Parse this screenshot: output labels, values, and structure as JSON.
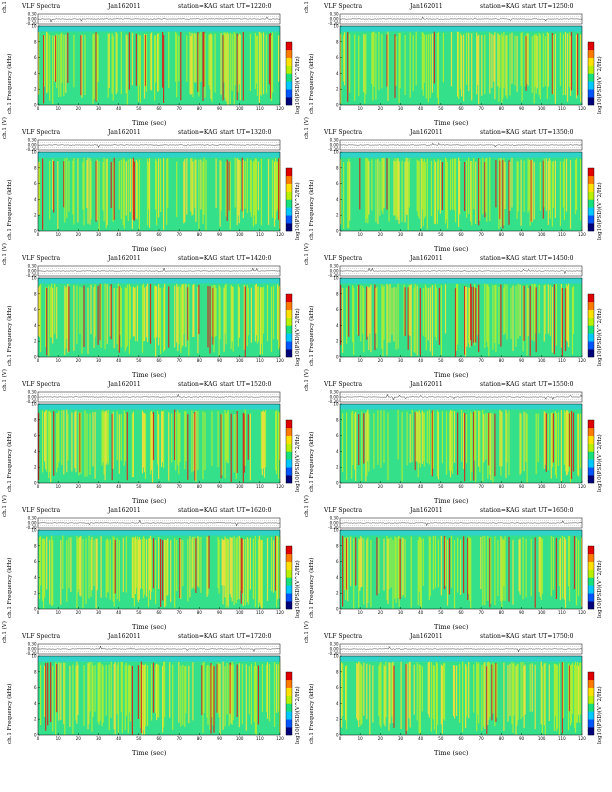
{
  "page": {
    "title": "VLF Spectra",
    "date": "Jan162011",
    "station": "station=KAG",
    "start_prefix": "start  UT"
  },
  "panels": [
    {
      "start": "=1220:0"
    },
    {
      "start": "=1250:0"
    },
    {
      "start": "=1320:0"
    },
    {
      "start": "=1350:0"
    },
    {
      "start": "=1420:0"
    },
    {
      "start": "=1450:0"
    },
    {
      "start": "=1520:0"
    },
    {
      "start": "=1550:0"
    },
    {
      "start": "=1620:0"
    },
    {
      "start": "=1650:0"
    },
    {
      "start": "=1720:0"
    },
    {
      "start": "=1750:0"
    }
  ],
  "axes": {
    "ch_label": "ch.1 (V)",
    "ch_ticks": [
      "0.30",
      "0.00",
      "-0.30"
    ],
    "freq_label": "ch.1 Frequency (kHz)",
    "freq_ticks": [
      "0",
      "2",
      "4",
      "6",
      "8",
      "10"
    ],
    "time_label": "Time (sec)",
    "time_ticks": [
      "0",
      "10",
      "20",
      "30",
      "40",
      "50",
      "60",
      "70",
      "80",
      "90",
      "100",
      "110",
      "120"
    ],
    "colorbar_label": "log10(PSD)(V^2/Hz)"
  },
  "chart_data": {
    "type": "heatmap",
    "panel_count": 12,
    "x": {
      "label": "Time (sec)",
      "range": [
        0,
        120
      ]
    },
    "y": {
      "label": "Frequency (kHz)",
      "range": [
        0,
        10
      ]
    },
    "waveform": {
      "label": "ch.1 (V)",
      "range": [
        -0.3,
        0.3
      ]
    },
    "colorbar": {
      "label": "log10(PSD)(V^2/Hz)",
      "colors": [
        "#00007a",
        "#0055ff",
        "#00c8ff",
        "#18e07a",
        "#b8f000",
        "#ffe000",
        "#ff7a00",
        "#e00000"
      ]
    },
    "palette": {
      "background": "#2fd3c8",
      "base": "#35e08a",
      "mid": "#b9ef2a",
      "high": "#ffe033",
      "peak": "#e01a10"
    }
  }
}
